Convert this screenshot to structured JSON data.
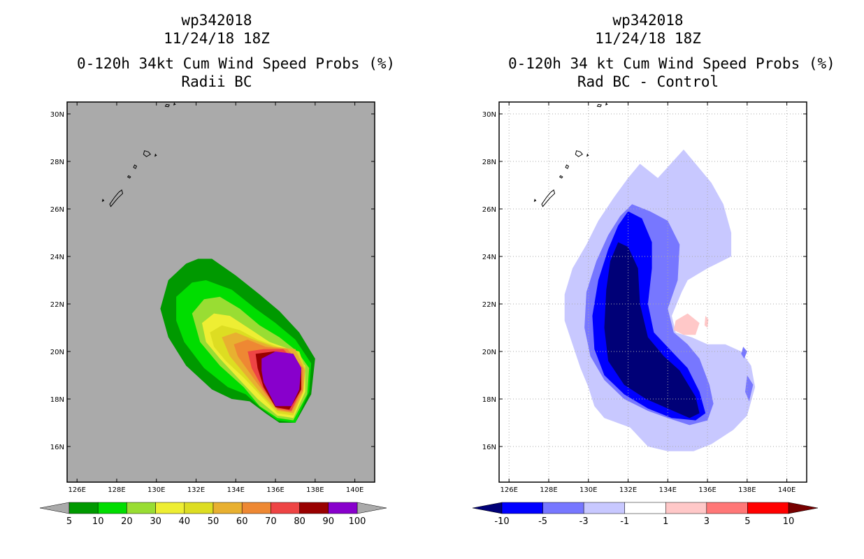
{
  "chart_data": [
    {
      "type": "heatmap",
      "storm_id": "wp342018",
      "datetime": "11/24/18 18Z",
      "title": "0-120h 34kt Cum Wind Speed Probs (%)",
      "subtitle": "Radii BC",
      "grid": false,
      "lon_range": [
        125.5,
        141
      ],
      "lat_range": [
        14.5,
        30.5
      ],
      "x_ticks": [
        "126E",
        "128E",
        "130E",
        "132E",
        "134E",
        "136E",
        "138E",
        "140E"
      ],
      "y_ticks": [
        "16N",
        "18N",
        "20N",
        "22N",
        "24N",
        "26N",
        "28N",
        "30N"
      ],
      "colorbar": {
        "labels": [
          "5",
          "10",
          "20",
          "30",
          "40",
          "50",
          "60",
          "70",
          "80",
          "90",
          "100"
        ],
        "colors": [
          "#009900",
          "#00dd00",
          "#99dd33",
          "#eeee33",
          "#dddd22",
          "#e8b030",
          "#ee8833",
          "#ee4444",
          "#990000",
          "#8800cc"
        ],
        "below_color": "#aaaaaa",
        "above_color": "#aaaaaa"
      },
      "background_color": "#aaaaaa",
      "contour_levels": [
        5,
        10,
        20,
        30,
        40,
        50,
        60,
        70,
        80,
        90
      ],
      "max_center": [
        136.3,
        18.7
      ]
    },
    {
      "type": "heatmap",
      "storm_id": "wp342018",
      "datetime": "11/24/18 18Z",
      "title": "0-120h 34 kt Cum Wind Speed Probs (%)",
      "subtitle": "Rad BC - Control",
      "grid": true,
      "lon_range": [
        125.5,
        141
      ],
      "lat_range": [
        14.5,
        30.5
      ],
      "x_ticks": [
        "126E",
        "128E",
        "130E",
        "132E",
        "134E",
        "136E",
        "138E",
        "140E"
      ],
      "y_ticks": [
        "16N",
        "18N",
        "20N",
        "22N",
        "24N",
        "26N",
        "28N",
        "30N"
      ],
      "colorbar": {
        "labels": [
          "-10",
          "-5",
          "-3",
          "-1",
          "1",
          "3",
          "5",
          "10"
        ],
        "colors": [
          "#0000ff",
          "#7777ff",
          "#c8c8ff",
          "#ffffff",
          "#ffc8c8",
          "#ff7777",
          "#ff0000"
        ],
        "below_color": "#000077",
        "above_color": "#770000"
      },
      "contour_levels": [
        -10,
        -5,
        -3,
        -1,
        1,
        3,
        5
      ],
      "negative_min_center": [
        132.2,
        20.5
      ],
      "positive_area_center": [
        134.8,
        21.0
      ]
    }
  ]
}
